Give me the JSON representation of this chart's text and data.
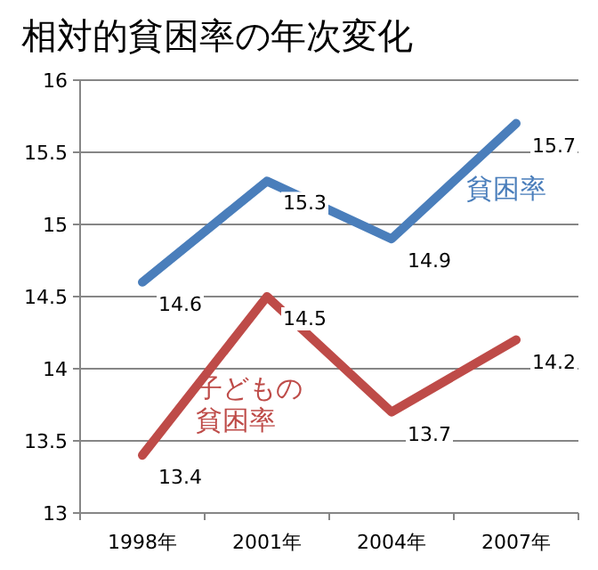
{
  "chart_data": {
    "type": "line",
    "title": "相対的貧困率の年次変化",
    "categories": [
      "1998年",
      "2001年",
      "2004年",
      "2007年"
    ],
    "series": [
      {
        "name": "貧困率",
        "color": "#4a7ebb",
        "values": [
          14.6,
          15.3,
          14.9,
          15.7
        ]
      },
      {
        "name": "子どもの貧困率",
        "color": "#be4b48",
        "values": [
          13.4,
          14.5,
          13.7,
          14.2
        ]
      }
    ],
    "ylim": [
      13,
      16
    ],
    "yticks": [
      13,
      13.5,
      14,
      14.5,
      15,
      15.5,
      16
    ],
    "grid": "y",
    "data_labels": true,
    "marker": "none",
    "line_style": "solid"
  }
}
